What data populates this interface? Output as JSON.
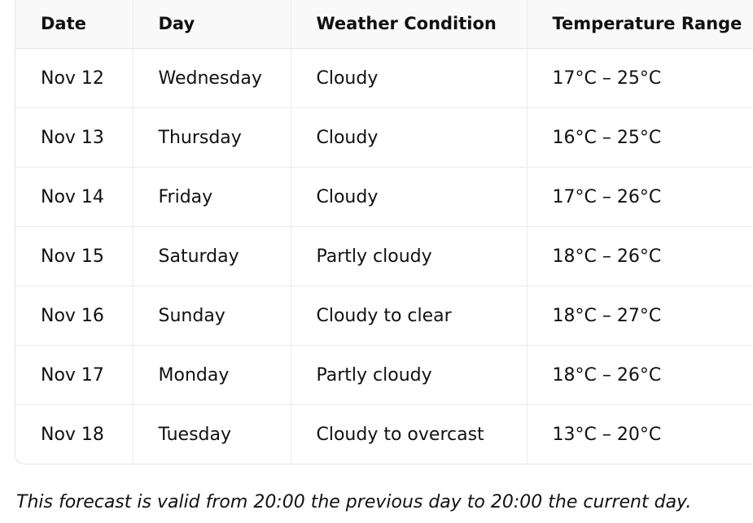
{
  "table": {
    "header": [
      "Date",
      "Day",
      "Weather Condition",
      "Temperature Range"
    ],
    "rows": [
      [
        "Nov 12",
        "Wednesday",
        "Cloudy",
        "17°C – 25°C"
      ],
      [
        "Nov 13",
        "Thursday",
        "Cloudy",
        "16°C – 25°C"
      ],
      [
        "Nov 14",
        "Friday",
        "Cloudy",
        "17°C – 26°C"
      ],
      [
        "Nov 15",
        "Saturday",
        "Partly cloudy",
        "18°C – 26°C"
      ],
      [
        "Nov 16",
        "Sunday",
        "Cloudy to clear",
        "18°C – 27°C"
      ],
      [
        "Nov 17",
        "Monday",
        "Partly cloudy",
        "18°C – 26°C"
      ],
      [
        "Nov 18",
        "Tuesday",
        "Cloudy to overcast",
        "13°C – 20°C"
      ]
    ]
  },
  "note": "This forecast is valid from 20:00 the previous day to 20:00 the current day."
}
